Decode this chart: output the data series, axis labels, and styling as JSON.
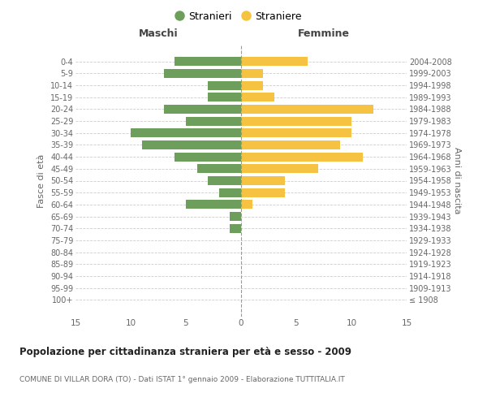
{
  "age_groups": [
    "100+",
    "95-99",
    "90-94",
    "85-89",
    "80-84",
    "75-79",
    "70-74",
    "65-69",
    "60-64",
    "55-59",
    "50-54",
    "45-49",
    "40-44",
    "35-39",
    "30-34",
    "25-29",
    "20-24",
    "15-19",
    "10-14",
    "5-9",
    "0-4"
  ],
  "birth_years": [
    "≤ 1908",
    "1909-1913",
    "1914-1918",
    "1919-1923",
    "1924-1928",
    "1929-1933",
    "1934-1938",
    "1939-1943",
    "1944-1948",
    "1949-1953",
    "1954-1958",
    "1959-1963",
    "1964-1968",
    "1969-1973",
    "1974-1978",
    "1979-1983",
    "1984-1988",
    "1989-1993",
    "1994-1998",
    "1999-2003",
    "2004-2008"
  ],
  "maschi": [
    0,
    0,
    0,
    0,
    0,
    0,
    1,
    1,
    5,
    2,
    3,
    4,
    6,
    9,
    10,
    5,
    7,
    3,
    3,
    7,
    6
  ],
  "femmine": [
    0,
    0,
    0,
    0,
    0,
    0,
    0,
    0,
    1,
    4,
    4,
    7,
    11,
    9,
    10,
    10,
    12,
    3,
    2,
    2,
    6
  ],
  "color_maschi": "#6d9e5b",
  "color_femmine": "#f5c242",
  "title": "Popolazione per cittadinanza straniera per età e sesso - 2009",
  "subtitle": "COMUNE DI VILLAR DORA (TO) - Dati ISTAT 1° gennaio 2009 - Elaborazione TUTTITALIA.IT",
  "xlabel_left": "Maschi",
  "xlabel_right": "Femmine",
  "ylabel_left": "Fasce di età",
  "ylabel_right": "Anni di nascita",
  "legend_maschi": "Stranieri",
  "legend_femmine": "Straniere",
  "xlim": 15,
  "background_color": "#ffffff",
  "grid_color": "#cccccc"
}
